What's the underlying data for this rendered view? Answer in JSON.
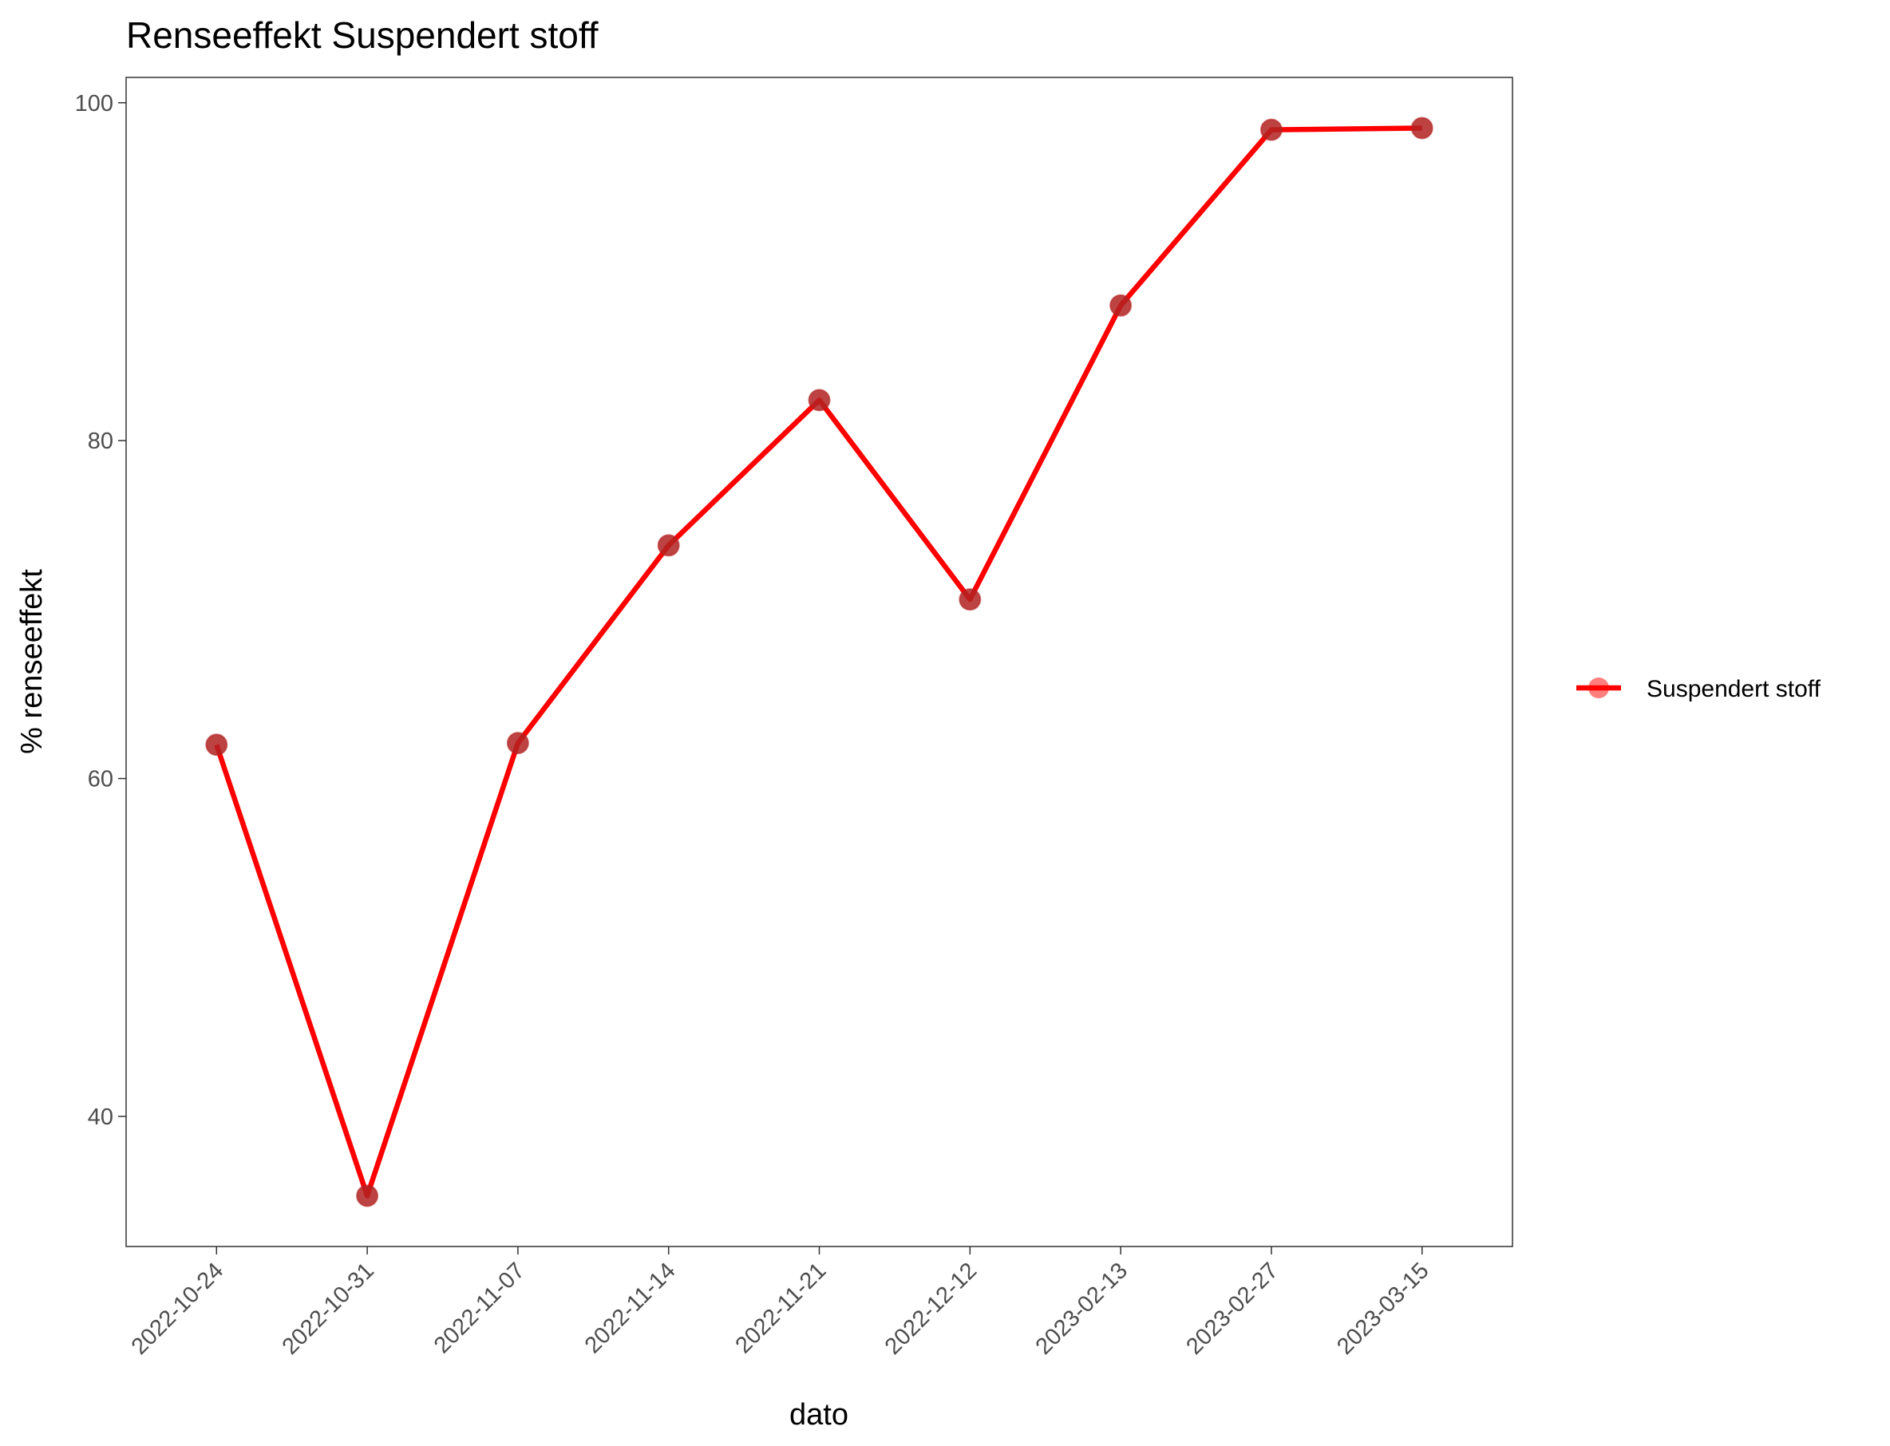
{
  "chart_data": {
    "type": "line",
    "title": "Renseeffekt Suspendert stoff",
    "xlabel": "dato",
    "ylabel": "% renseeffekt",
    "x": [
      "2022-10-24",
      "2022-10-31",
      "2022-11-07",
      "2022-11-14",
      "2022-11-21",
      "2022-12-12",
      "2023-02-13",
      "2023-02-27",
      "2023-03-15"
    ],
    "x_axis": "categorical, labels rotated 45°",
    "series": [
      {
        "name": "Suspendert stoff",
        "values": [
          62.0,
          35.3,
          62.1,
          73.8,
          82.4,
          70.6,
          88.0,
          98.4,
          98.5
        ],
        "line_color": "#ff0000",
        "marker_color": "#b22222"
      }
    ],
    "ylim": [
      32.3,
      101.5
    ],
    "yticks": [
      40,
      60,
      80,
      100
    ],
    "grid": false,
    "legend": "right"
  }
}
